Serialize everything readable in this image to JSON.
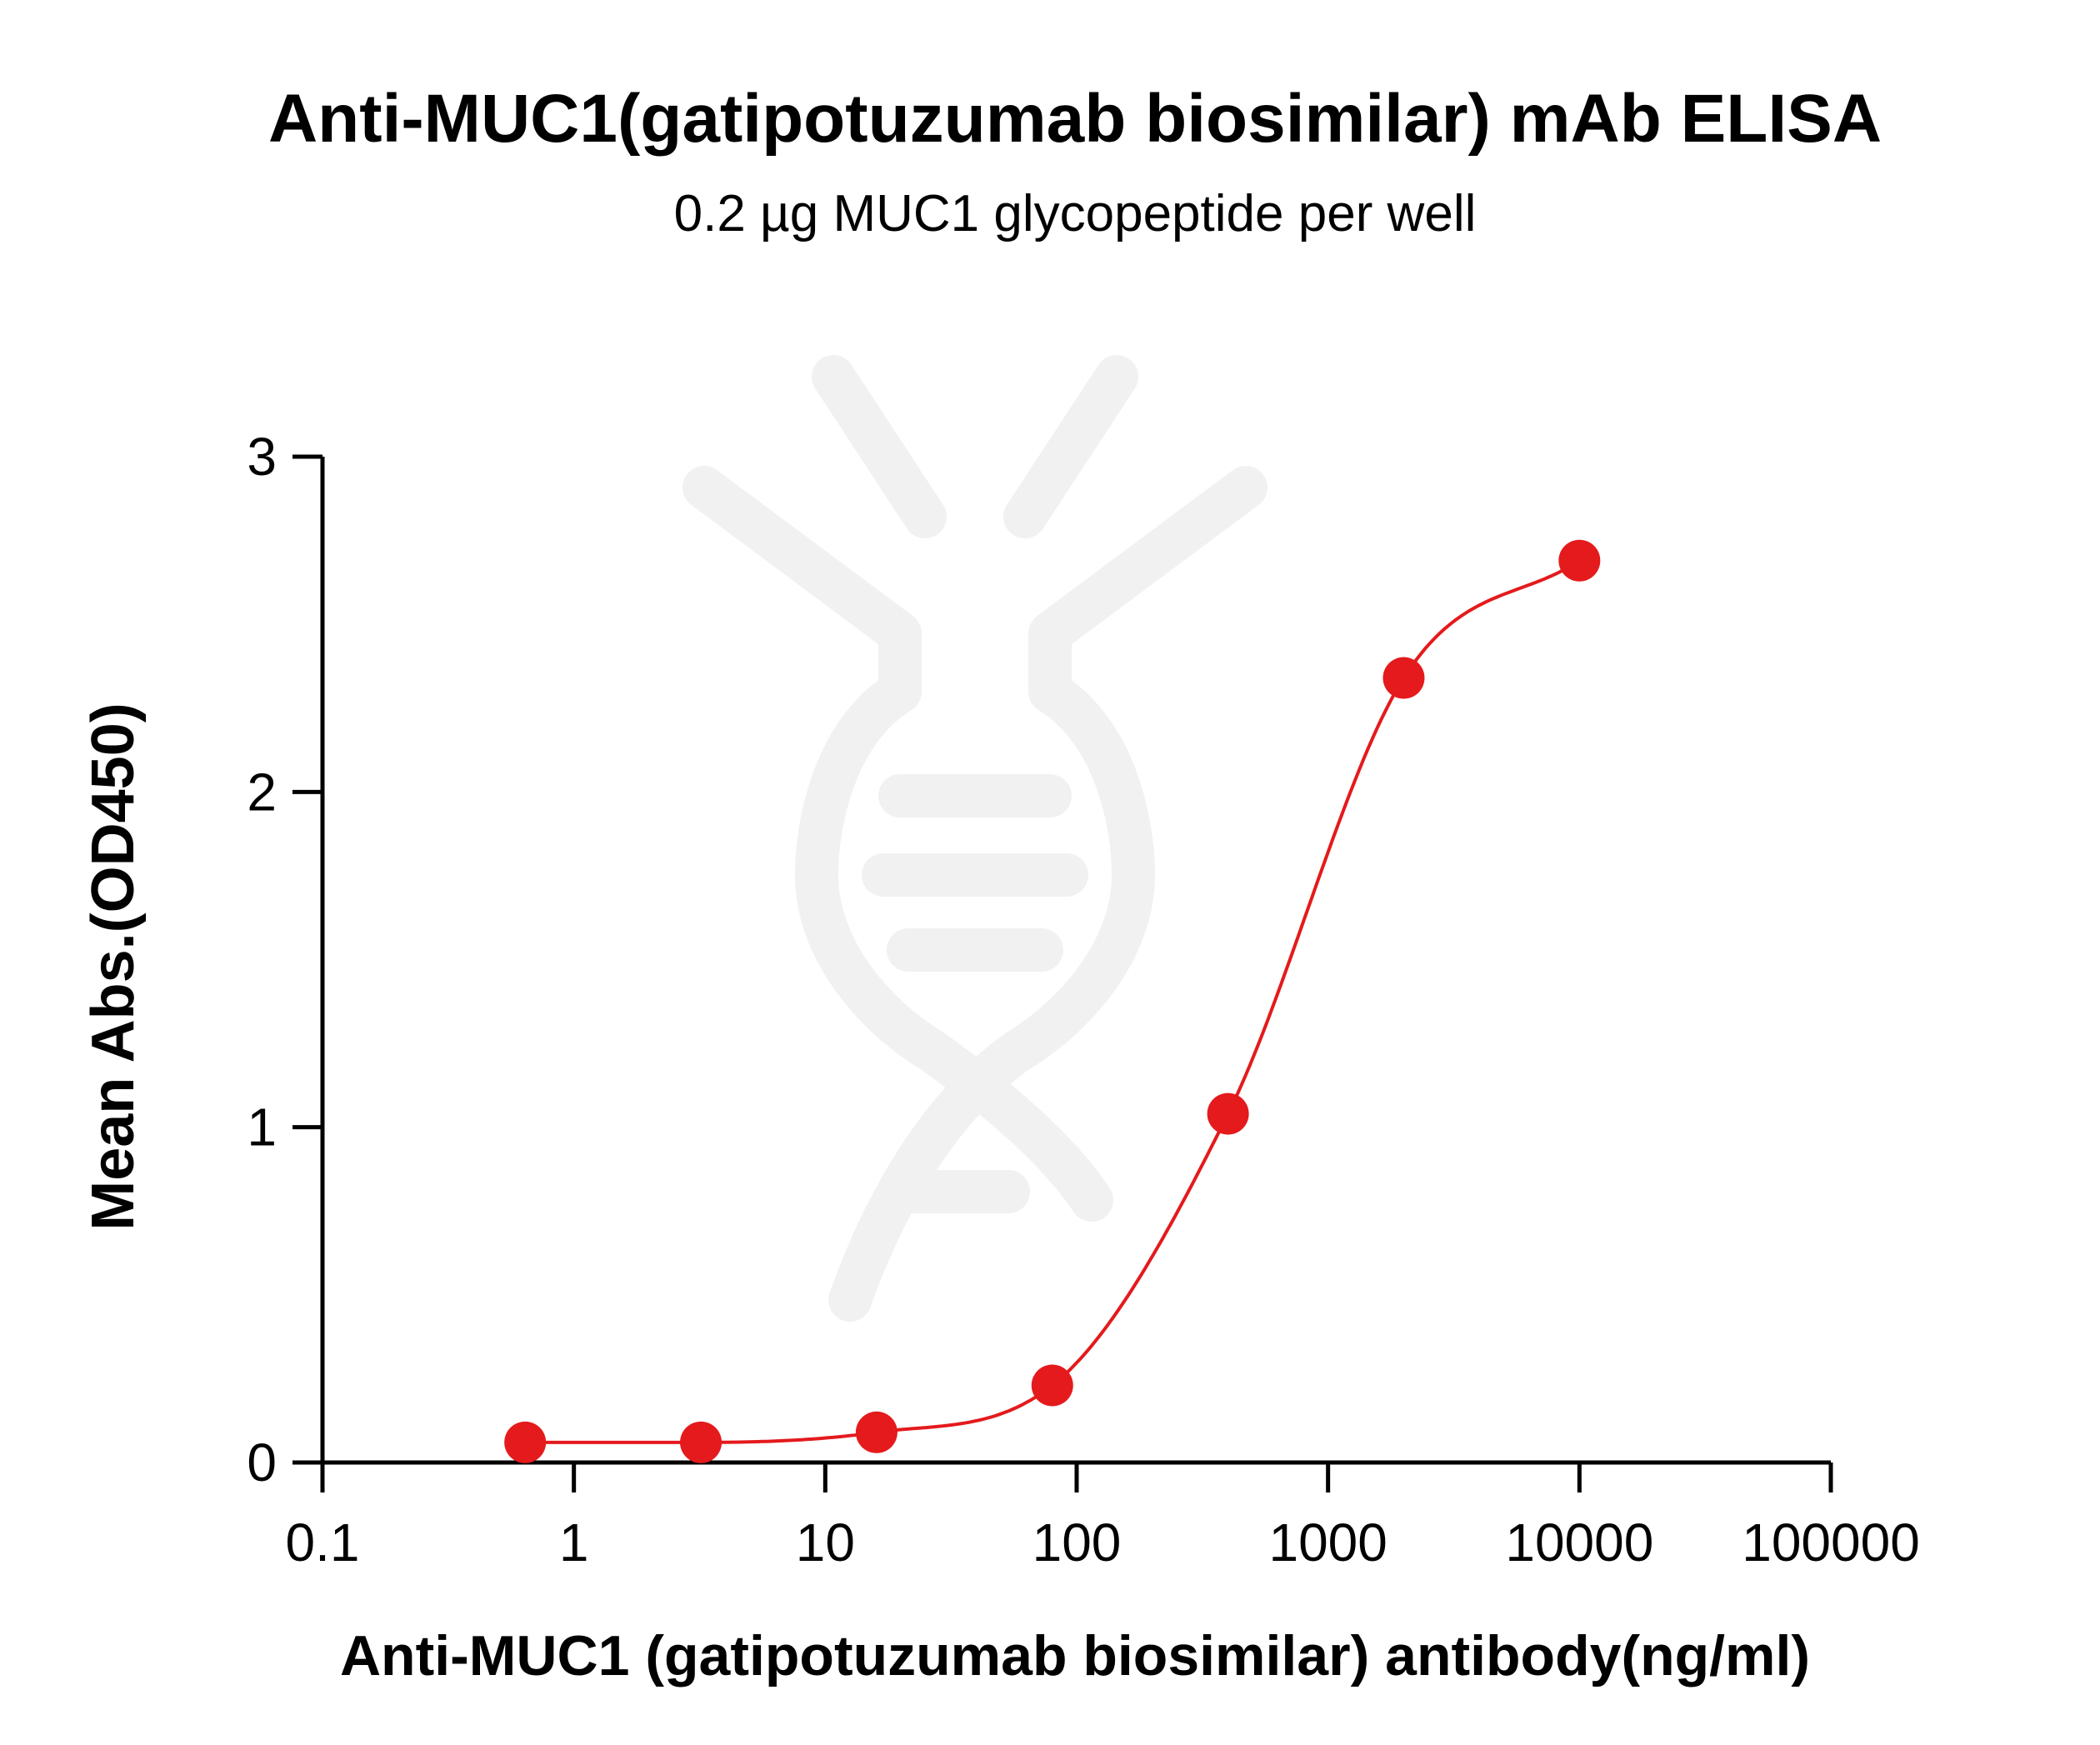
{
  "chart_data": {
    "type": "scatter",
    "title": "Anti-MUC1(gatipotuzumab biosimilar) mAb ELISA",
    "subtitle": "0.2 µg MUC1 glycopeptide per well",
    "xlabel": "Anti-MUC1 (gatipotuzumab biosimilar) antibody(ng/ml)",
    "ylabel": "Mean Abs.(OD450)",
    "x_scale": "log",
    "xlim": [
      0.1,
      100000
    ],
    "ylim": [
      0,
      3
    ],
    "x_ticks": [
      {
        "value": 0.1,
        "label": "0.1"
      },
      {
        "value": 1,
        "label": "1"
      },
      {
        "value": 10,
        "label": "10"
      },
      {
        "value": 100,
        "label": "100"
      },
      {
        "value": 1000,
        "label": "1000"
      },
      {
        "value": 10000,
        "label": "10000"
      },
      {
        "value": 100000,
        "label": "100000"
      }
    ],
    "y_ticks": [
      {
        "value": 0,
        "label": "0"
      },
      {
        "value": 1,
        "label": "1"
      },
      {
        "value": 2,
        "label": "2"
      },
      {
        "value": 3,
        "label": "3"
      }
    ],
    "grid": false,
    "legend": "none",
    "series": [
      {
        "color": "#e41a1c",
        "fit": "four-parameter logistic curve",
        "x": [
          0.64,
          3.2,
          16,
          80,
          400,
          2000,
          10000
        ],
        "y": [
          0.06,
          0.06,
          0.09,
          0.23,
          1.04,
          2.34,
          2.69
        ]
      }
    ],
    "axis_color": "#000000",
    "watermark": "antibody-dna-logo"
  }
}
